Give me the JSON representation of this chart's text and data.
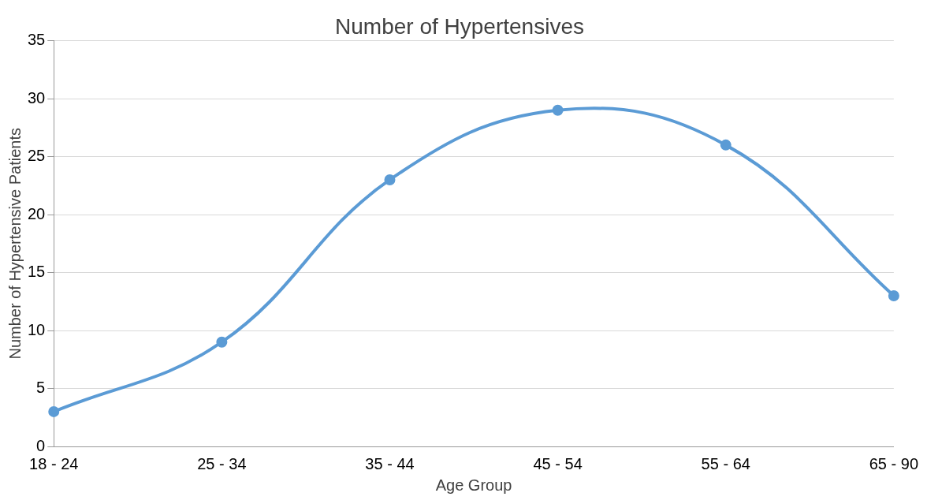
{
  "chart_data": {
    "type": "line",
    "title": "Number of Hypertensives",
    "xlabel": "Age Group",
    "ylabel": "Number of Hypertensive Patients",
    "categories": [
      "18 - 24",
      "25 - 34",
      "35 - 44",
      "45 - 54",
      "55 - 64",
      "65 - 90"
    ],
    "values": [
      3,
      9,
      23,
      29,
      26,
      13
    ],
    "color": "#5b9bd5",
    "ylim": [
      0,
      35
    ],
    "yticks": [
      0,
      5,
      10,
      15,
      20,
      25,
      30,
      35
    ],
    "grid": "y",
    "marker": "circle"
  }
}
